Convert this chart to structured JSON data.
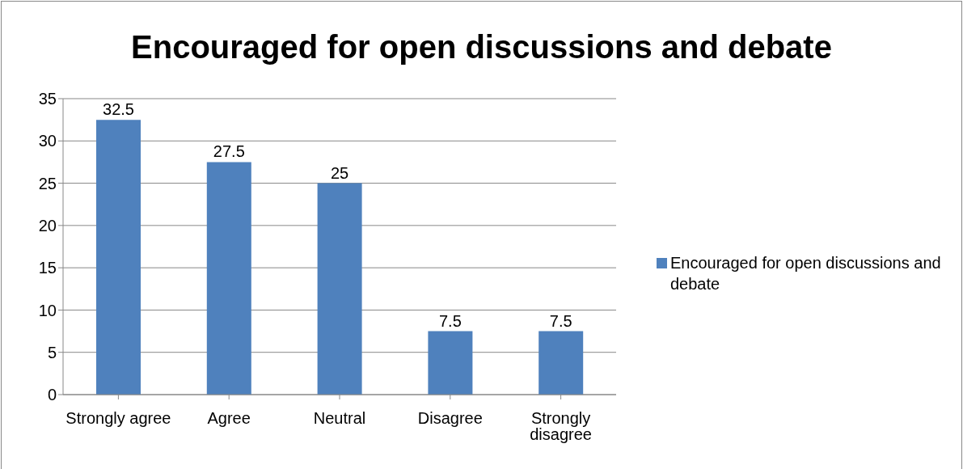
{
  "chart_data": {
    "type": "bar",
    "title": "Encouraged for open discussions and debate",
    "categories": [
      "Strongly agree",
      "Agree",
      "Neutral",
      "Disagree",
      "Strongly disagree"
    ],
    "series": [
      {
        "name": "Encouraged for open discussions and debate",
        "color": "#4f81bd",
        "values": [
          32.5,
          27.5,
          25,
          7.5,
          7.5
        ]
      }
    ],
    "ylim": [
      0,
      35
    ],
    "yticks": [
      0,
      5,
      10,
      15,
      20,
      25,
      30,
      35
    ],
    "grid": "y",
    "legend": "right",
    "data_labels": true
  }
}
